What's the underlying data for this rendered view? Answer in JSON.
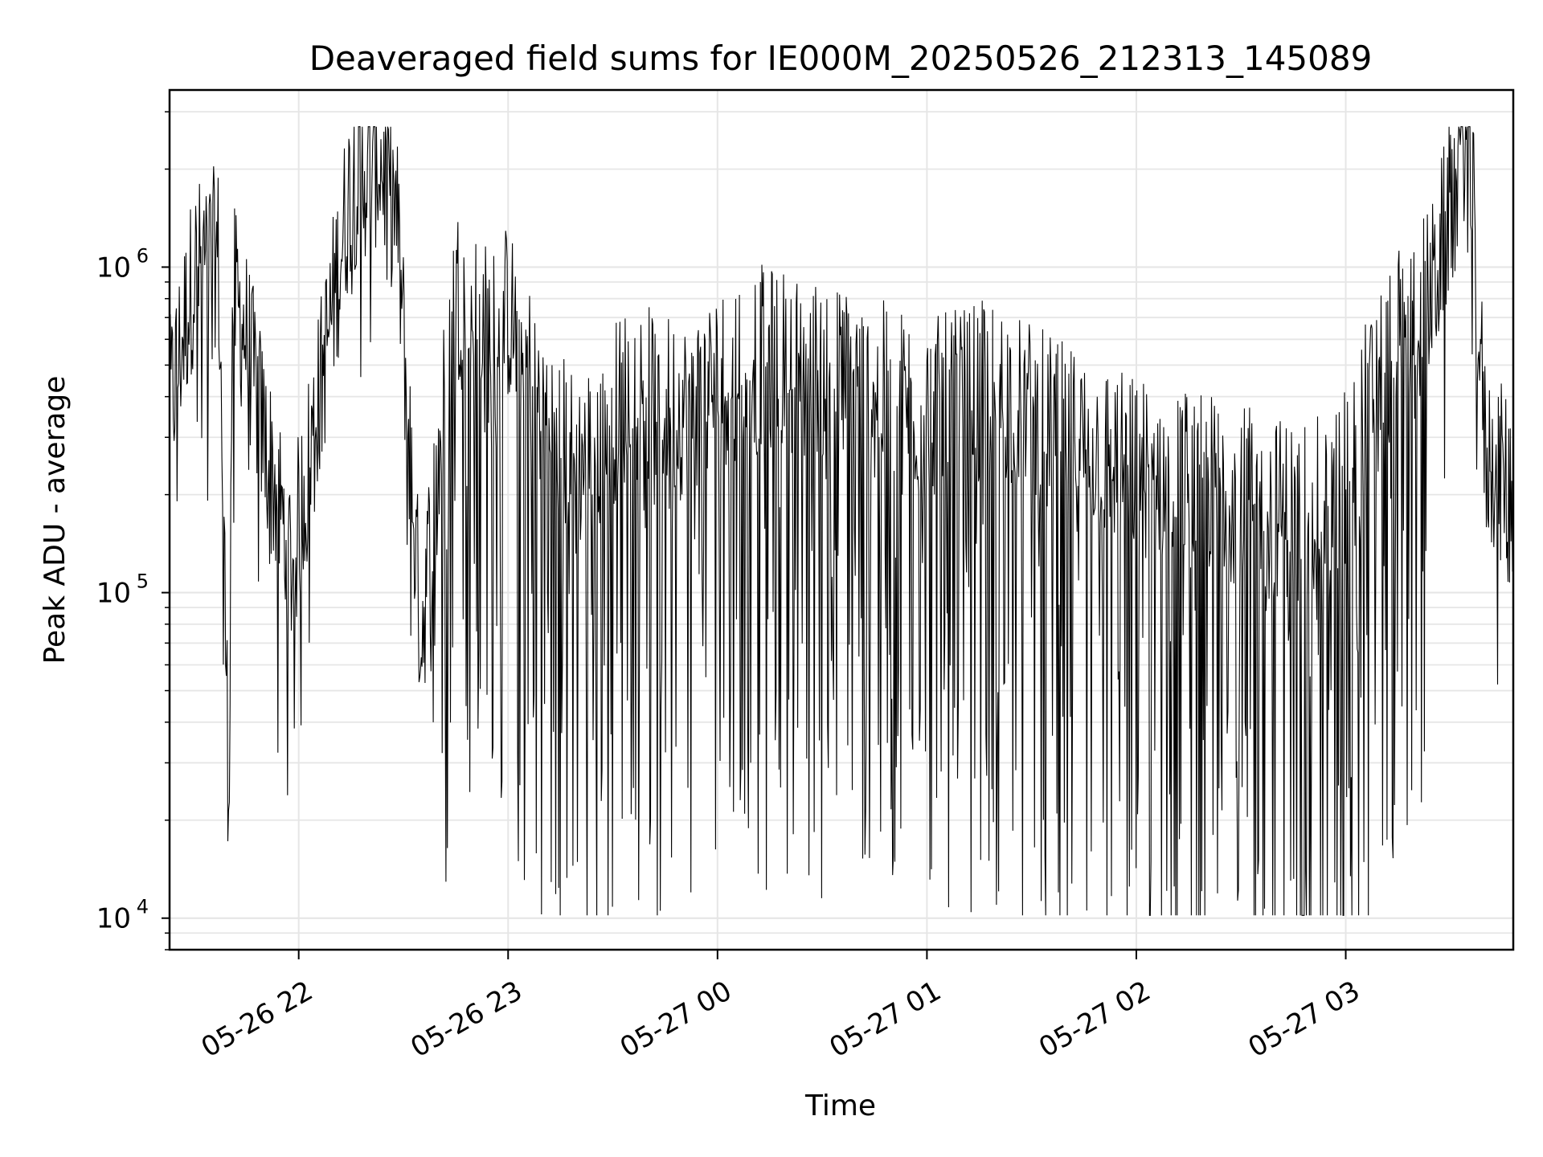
{
  "chart_data": {
    "type": "line",
    "title": "Deaveraged field sums for IE000M_20250526_212313_145089",
    "xlabel": "Time",
    "ylabel": "Peak ADU - average",
    "yscale": "log",
    "ylim": [
      8000,
      3500000
    ],
    "xlim": [
      "2025-05-26 21:23",
      "2025-05-27 03:48"
    ],
    "x_ticks": [
      "05-26 22",
      "05-26 23",
      "05-27 00",
      "05-27 01",
      "05-27 02",
      "05-27 03"
    ],
    "y_ticks": [
      {
        "base": "10",
        "exp": "4",
        "value": 10000
      },
      {
        "base": "10",
        "exp": "5",
        "value": 100000
      },
      {
        "base": "10",
        "exp": "6",
        "value": 1000000
      }
    ],
    "grid": true,
    "line_color": "#000000",
    "series": [
      {
        "x": [
          "2025-05-26 21:23",
          "2025-05-26 21:30",
          "2025-05-26 21:37",
          "2025-05-26 21:40",
          "2025-05-26 21:41",
          "2025-05-26 21:45",
          "2025-05-26 21:50",
          "2025-05-26 21:58",
          "2025-05-26 22:07",
          "2025-05-26 22:15",
          "2025-05-26 22:23",
          "2025-05-26 22:28",
          "2025-05-26 22:35",
          "2025-05-26 22:45",
          "2025-05-26 22:55",
          "2025-05-26 23:00",
          "2025-05-26 23:10",
          "2025-05-26 23:20",
          "2025-05-26 23:35",
          "2025-05-26 23:50",
          "2025-05-27 00:10",
          "2025-05-27 00:30",
          "2025-05-27 00:45",
          "2025-05-27 01:00",
          "2025-05-27 01:20",
          "2025-05-27 01:40",
          "2025-05-27 02:00",
          "2025-05-27 02:20",
          "2025-05-27 02:40",
          "2025-05-27 02:55",
          "2025-05-27 03:10",
          "2025-05-27 03:25",
          "2025-05-27 03:35",
          "2025-05-27 03:40",
          "2025-05-27 03:48"
        ],
        "y": [
          300000,
          800000,
          900000,
          18000,
          700000,
          500000,
          250000,
          100000,
          400000,
          1500000,
          1800000,
          1200000,
          60000,
          700000,
          500000,
          600000,
          300000,
          200000,
          350000,
          300000,
          450000,
          400000,
          350000,
          300000,
          350000,
          250000,
          200000,
          180000,
          150000,
          150000,
          400000,
          700000,
          2500000,
          220000,
          170000
        ]
      }
    ]
  }
}
